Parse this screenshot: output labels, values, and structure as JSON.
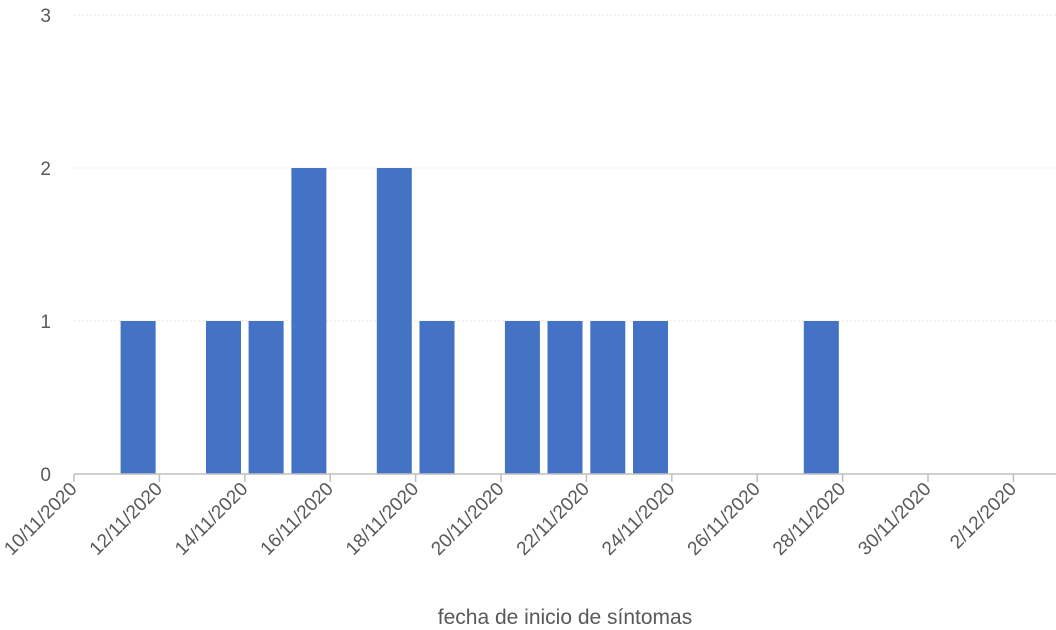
{
  "chart_data": {
    "type": "bar",
    "title": "",
    "xlabel": "fecha de inicio de síntomas",
    "ylabel": "",
    "ylim": [
      0,
      3
    ],
    "y_ticks": [
      "0",
      "1",
      "2",
      "3"
    ],
    "x_tick_labels": [
      "10/11/2020",
      "12/11/2020",
      "14/11/2020",
      "16/11/2020",
      "18/11/2020",
      "20/11/2020",
      "22/11/2020",
      "24/11/2020",
      "26/11/2020",
      "28/11/2020",
      "30/11/2020",
      "2/12/2020"
    ],
    "categories": [
      "10/11/2020",
      "11/11/2020",
      "12/11/2020",
      "13/11/2020",
      "14/11/2020",
      "15/11/2020",
      "16/11/2020",
      "17/11/2020",
      "18/11/2020",
      "19/11/2020",
      "20/11/2020",
      "21/11/2020",
      "22/11/2020",
      "23/11/2020",
      "24/11/2020",
      "25/11/2020",
      "26/11/2020",
      "27/11/2020",
      "28/11/2020",
      "29/11/2020",
      "30/11/2020",
      "1/12/2020",
      "2/12/2020"
    ],
    "values": [
      0,
      1,
      0,
      1,
      1,
      2,
      0,
      2,
      1,
      0,
      1,
      1,
      1,
      1,
      0,
      0,
      0,
      1,
      0,
      0,
      0,
      0,
      0
    ],
    "grid": true,
    "legend": "none",
    "bar_color": "#4472C4",
    "grid_color": "#E6E6E6",
    "axis_color": "#BFBFBF",
    "text_color": "#595959"
  }
}
